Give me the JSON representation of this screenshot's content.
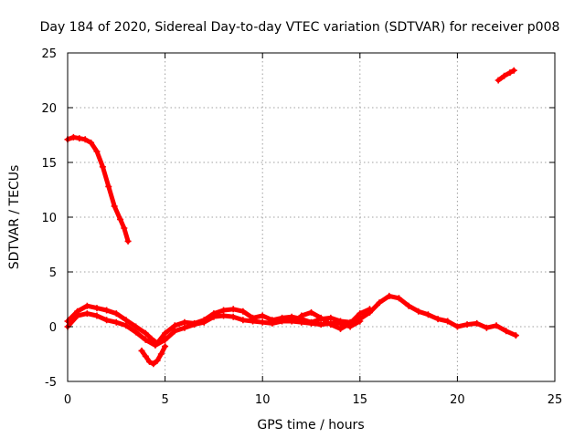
{
  "chart_data": {
    "type": "scatter",
    "title": "Day 184 of 2020, Sidereal Day-to-day VTEC variation (SDTVAR) for receiver p008",
    "xlabel": "GPS time / hours",
    "ylabel": "SDTVAR / TECUs",
    "xlim": [
      0,
      25
    ],
    "ylim": [
      -5,
      25
    ],
    "xticks": [
      0,
      5,
      10,
      15,
      20,
      25
    ],
    "yticks": [
      -5,
      0,
      5,
      10,
      15,
      20,
      25
    ],
    "grid": true,
    "marker_color": "#ff0000",
    "series": [
      {
        "name": "arc-1",
        "x": [
          0.0,
          0.3,
          0.6,
          0.9,
          1.2,
          1.5,
          1.8,
          2.1,
          2.4,
          2.7,
          2.9,
          3.1
        ],
        "y": [
          17.1,
          17.3,
          17.2,
          17.1,
          16.8,
          16.0,
          14.6,
          12.8,
          11.0,
          9.8,
          9.0,
          7.8
        ]
      },
      {
        "name": "arc-2",
        "x": [
          22.1,
          22.4,
          22.7,
          22.9
        ],
        "y": [
          22.5,
          22.9,
          23.2,
          23.4
        ]
      },
      {
        "name": "arc-3",
        "x": [
          0.0,
          0.5,
          1.0,
          1.5,
          2.0,
          2.5,
          3.0,
          3.5,
          4.0,
          4.3,
          4.6,
          5.0,
          5.5,
          6.0,
          6.5,
          7.0,
          7.5,
          8.0,
          8.5,
          9.0,
          9.5,
          10.0,
          10.5,
          11.0,
          11.5,
          12.0,
          12.5,
          13.0,
          13.5,
          14.0,
          14.5,
          15.0,
          15.5,
          16.0,
          16.5,
          17.0,
          17.5,
          18.0,
          18.5,
          19.0,
          19.5,
          20.0,
          20.5,
          21.0,
          21.5,
          22.0,
          22.5,
          23.0
        ],
        "y": [
          0.5,
          1.4,
          1.9,
          1.7,
          1.5,
          1.2,
          0.6,
          0.0,
          -0.6,
          -1.1,
          -1.5,
          -0.6,
          0.1,
          0.4,
          0.3,
          0.6,
          1.2,
          1.5,
          1.6,
          1.4,
          0.8,
          1.0,
          0.6,
          0.8,
          0.9,
          0.7,
          0.4,
          0.7,
          0.8,
          0.5,
          0.4,
          0.7,
          1.3,
          2.2,
          2.8,
          2.6,
          1.9,
          1.4,
          1.1,
          0.7,
          0.5,
          0.0,
          0.2,
          0.3,
          -0.1,
          0.1,
          -0.4,
          -0.8
        ]
      },
      {
        "name": "arc-4",
        "x": [
          0.0,
          0.5,
          1.0,
          1.5,
          2.0,
          2.5,
          3.0,
          3.5,
          4.0,
          4.5,
          5.0,
          5.5,
          6.0,
          6.5,
          7.0,
          7.5,
          8.0,
          8.5,
          9.0,
          9.5,
          10.0,
          10.5,
          11.0,
          11.5,
          12.0,
          12.5,
          13.0,
          13.5,
          14.0,
          14.5,
          15.0
        ],
        "y": [
          0.0,
          1.0,
          1.2,
          1.0,
          0.6,
          0.4,
          0.1,
          -0.5,
          -1.2,
          -1.7,
          -1.2,
          -0.4,
          -0.1,
          0.2,
          0.4,
          0.9,
          1.0,
          0.9,
          0.6,
          0.5,
          0.4,
          0.3,
          0.5,
          0.5,
          0.4,
          0.3,
          0.2,
          0.3,
          0.3,
          0.0,
          0.5
        ]
      },
      {
        "name": "arc-5",
        "x": [
          3.8,
          4.0,
          4.2,
          4.4,
          4.6,
          4.8,
          5.0
        ],
        "y": [
          -2.2,
          -2.7,
          -3.2,
          -3.4,
          -3.1,
          -2.5,
          -1.8
        ]
      },
      {
        "name": "arc-6",
        "x": [
          12.0,
          12.5,
          13.0,
          13.5,
          14.0,
          14.5,
          15.0,
          15.5
        ],
        "y": [
          1.0,
          1.3,
          0.8,
          0.2,
          -0.2,
          0.3,
          1.2,
          1.6
        ]
      }
    ]
  }
}
